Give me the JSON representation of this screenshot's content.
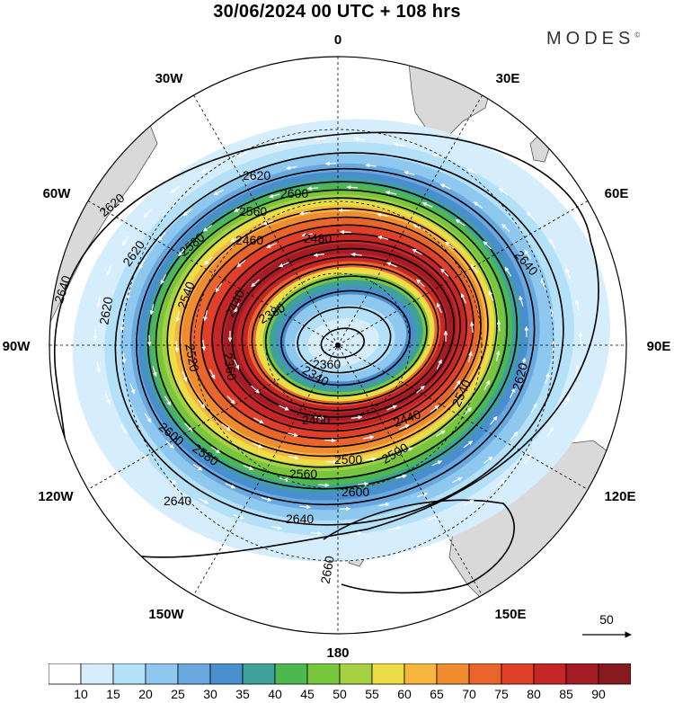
{
  "title": "30/06/2024  00 UTC  + 108 hrs",
  "brand": "MODES",
  "brand_mark": "©",
  "longitude_labels": {
    "lon_0": "0",
    "lon_30e": "30E",
    "lon_60e": "60E",
    "lon_90e": "90E",
    "lon_120e": "120E",
    "lon_150e": "150E",
    "lon_180": "180",
    "lon_150w": "150W",
    "lon_120w": "120W",
    "lon_90w": "90W",
    "lon_60w": "60W",
    "lon_30w": "30W"
  },
  "contour_labels": [
    "2640",
    "2620",
    "2640",
    "2660",
    "2620",
    "2600",
    "2640",
    "2600",
    "2620",
    "2560",
    "2640",
    "2580",
    "2620",
    "2540",
    "2460",
    "2480",
    "2440",
    "2500",
    "2380",
    "2520",
    "2340",
    "2360",
    "2360",
    "2400",
    "2440",
    "2540",
    "2560",
    "2580",
    "2500",
    "2600",
    "2620"
  ],
  "reference_vector": {
    "label": "50"
  },
  "colorbar": {
    "colors": [
      "#ffffff",
      "#d6eefb",
      "#b4e1f7",
      "#8ec8ef",
      "#6aa9e0",
      "#4a8fcd",
      "#3fa29a",
      "#4db84f",
      "#78c63e",
      "#a6d143",
      "#ecdc45",
      "#f7b640",
      "#f08c30",
      "#e9652c",
      "#e0402a",
      "#c62627",
      "#a41c24",
      "#861a1f"
    ],
    "labels": [
      "10",
      "15",
      "20",
      "25",
      "30",
      "35",
      "40",
      "45",
      "50",
      "55",
      "60",
      "65",
      "70",
      "75",
      "80",
      "85",
      "90"
    ]
  },
  "colors": {
    "land": "#d9d9d9",
    "contour": "#000000",
    "vector": "#ffffff"
  }
}
